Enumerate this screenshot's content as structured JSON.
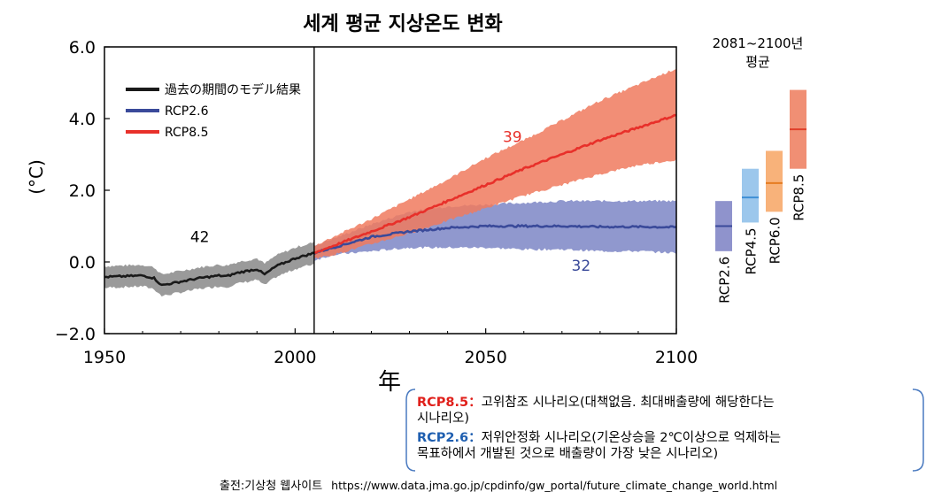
{
  "chart_data": {
    "type": "line",
    "title": "세계 평균 지상온도 변화",
    "xlabel": "年",
    "ylabel": "(°C)",
    "xlim": [
      1950,
      2100
    ],
    "ylim": [
      -2.0,
      6.0
    ],
    "x_ticks": [
      "1950",
      "2000",
      "2050",
      "2100"
    ],
    "y_ticks": [
      "−2.0",
      "0.0",
      "2.0",
      "4.0",
      "6.0"
    ],
    "divider_year": 2005,
    "legend": {
      "placement": "top-left",
      "entries": [
        {
          "label": "過去の期間のモデル結果",
          "color": "#1a1a1a"
        },
        {
          "label": "RCP2.6",
          "color": "#3a4a9a"
        },
        {
          "label": "RCP8.5",
          "color": "#e8302a"
        }
      ]
    },
    "series": [
      {
        "name": "過去の期間のモデル結果",
        "color": "#1a1a1a",
        "band_color": "#9a9a9a",
        "x": [
          1950,
          1955,
          1960,
          1963,
          1965,
          1970,
          1975,
          1980,
          1982,
          1985,
          1990,
          1992,
          1995,
          2000,
          2005
        ],
        "y": [
          -0.42,
          -0.4,
          -0.38,
          -0.45,
          -0.65,
          -0.55,
          -0.45,
          -0.38,
          -0.4,
          -0.3,
          -0.2,
          -0.35,
          -0.12,
          0.1,
          0.25
        ],
        "band_halfwidth": 0.3
      },
      {
        "name": "RCP2.6",
        "color": "#3a4a9a",
        "band_color": "#7d86c6",
        "x": [
          2005,
          2010,
          2020,
          2030,
          2040,
          2050,
          2060,
          2070,
          2080,
          2090,
          2100
        ],
        "y": [
          0.25,
          0.4,
          0.7,
          0.85,
          0.95,
          1.0,
          1.0,
          1.0,
          0.98,
          0.98,
          0.97
        ],
        "band_lower": [
          0.05,
          0.2,
          0.3,
          0.4,
          0.4,
          0.4,
          0.35,
          0.35,
          0.3,
          0.3,
          0.25
        ],
        "band_upper": [
          0.45,
          0.65,
          1.05,
          1.4,
          1.55,
          1.6,
          1.65,
          1.7,
          1.7,
          1.7,
          1.7
        ]
      },
      {
        "name": "RCP8.5",
        "color": "#e8302a",
        "band_color": "#f07a5e",
        "x": [
          2005,
          2010,
          2020,
          2030,
          2040,
          2050,
          2060,
          2070,
          2080,
          2090,
          2100
        ],
        "y": [
          0.25,
          0.45,
          0.85,
          1.25,
          1.7,
          2.15,
          2.6,
          3.0,
          3.4,
          3.75,
          4.1
        ],
        "band_lower": [
          0.1,
          0.2,
          0.5,
          0.8,
          1.15,
          1.5,
          1.85,
          2.15,
          2.45,
          2.7,
          2.85
        ],
        "band_upper": [
          0.45,
          0.7,
          1.2,
          1.75,
          2.3,
          2.9,
          3.4,
          3.95,
          4.5,
          4.95,
          5.4
        ]
      }
    ],
    "annotations": [
      {
        "text": "42",
        "x": 1975,
        "y": 0.55,
        "color": "#000000"
      },
      {
        "text": "39",
        "x": 2057,
        "y": 3.35,
        "color": "#e8302a"
      },
      {
        "text": "32",
        "x": 2075,
        "y": -0.25,
        "color": "#3a4a9a"
      }
    ],
    "side_panel": {
      "title_line1": "2081~2100년",
      "title_line2": "평균",
      "bars": [
        {
          "label": "RCP2.6",
          "mean": 1.0,
          "low": 0.3,
          "high": 1.7,
          "fill": "#8f93cc",
          "line": "#3a4a9a"
        },
        {
          "label": "RCP4.5",
          "mean": 1.8,
          "low": 1.1,
          "high": 2.6,
          "fill": "#9cc7ec",
          "line": "#3f8fd6"
        },
        {
          "label": "RCP6.0",
          "mean": 2.2,
          "low": 1.4,
          "high": 3.1,
          "fill": "#f8b27a",
          "line": "#e67c22"
        },
        {
          "label": "RCP8.5",
          "mean": 3.7,
          "low": 2.6,
          "high": 4.8,
          "fill": "#f08f74",
          "line": "#e0402a"
        }
      ]
    }
  },
  "notes": {
    "rcp85_tag": "RCP8.5：",
    "rcp85_line1": "고위참조 시나리오(대책없음. 최대배출량에 해당한다는",
    "rcp85_line2": "시나리오)",
    "rcp26_tag": "RCP2.6：",
    "rcp26_line1": "저위안정화 시나리오(기온상승을 2℃이상으로 억제하는",
    "rcp26_line2": "목표하에서 개발된 것으로 배출량이 가장 낮은 시나리오)"
  },
  "source": {
    "label": "출전:기상청 웹사이트",
    "url": "https://www.data.jma.go.jp/cpdinfo/gw_portal/future_climate_change_world.html"
  }
}
